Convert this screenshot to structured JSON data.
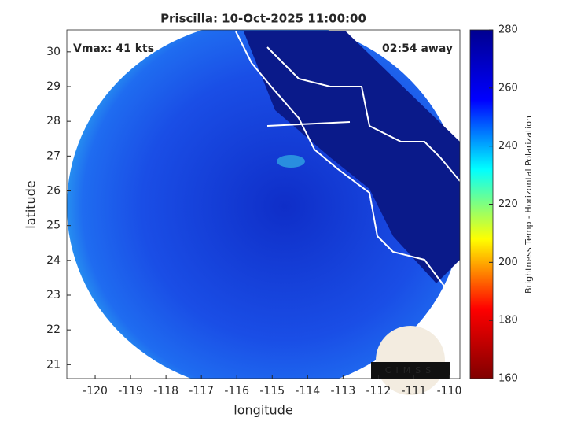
{
  "chart_data": {
    "type": "map",
    "title": "Priscilla: 10-Oct-2025 11:00:00",
    "xlabel": "longitude",
    "ylabel": "latitude",
    "xlim": [
      -120.8,
      -109.7
    ],
    "ylim": [
      20.6,
      30.63
    ],
    "xticks": [
      -120,
      -119,
      -118,
      -117,
      -116,
      -115,
      -114,
      -113,
      -112,
      -111,
      -110
    ],
    "yticks": [
      21,
      22,
      23,
      24,
      25,
      26,
      27,
      28,
      29,
      30
    ],
    "annotations": [
      "Vmax: 41 kts",
      "02:54 away"
    ],
    "logo": "CIMSS",
    "colorbar": {
      "label": "Brightness Temp - Horizontal Polarization",
      "clim": [
        160,
        280
      ],
      "ticks": [
        160,
        180,
        200,
        220,
        240,
        260,
        280
      ],
      "colormap": [
        "#800000",
        "#ff0000",
        "#ffff00",
        "#00ffff",
        "#0000ff",
        "#00008f"
      ]
    }
  }
}
